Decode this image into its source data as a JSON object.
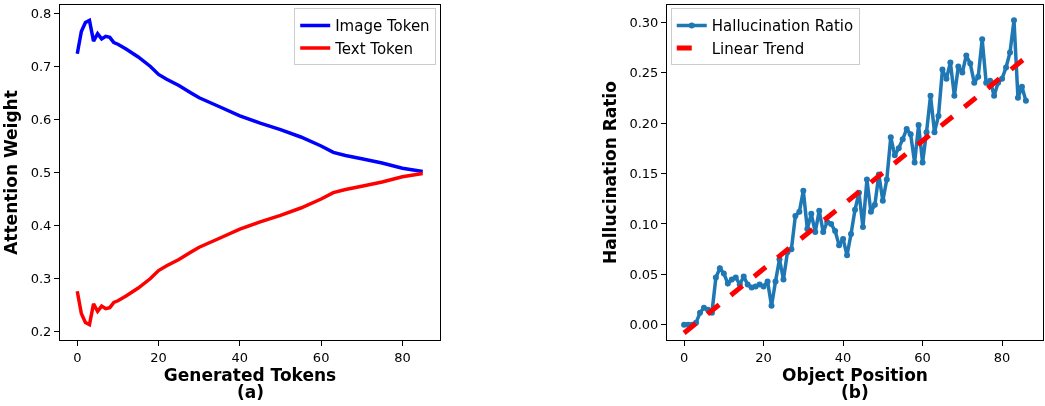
{
  "chart_data": [
    {
      "type": "line",
      "xlabel": "Generated Tokens",
      "ylabel": "Attention Weight",
      "annotations": [
        "(a)"
      ],
      "x": [
        0,
        1,
        2,
        3,
        4,
        5,
        6,
        7,
        8,
        9,
        10,
        12,
        15,
        18,
        20,
        22,
        25,
        28,
        30,
        35,
        40,
        45,
        50,
        55,
        60,
        63,
        66,
        70,
        75,
        80,
        85
      ],
      "series": [
        {
          "name": "Image Token",
          "color": "#0000ff",
          "values": [
            0.724,
            0.766,
            0.783,
            0.787,
            0.748,
            0.762,
            0.752,
            0.757,
            0.755,
            0.745,
            0.742,
            0.733,
            0.718,
            0.7,
            0.685,
            0.676,
            0.664,
            0.65,
            0.641,
            0.624,
            0.607,
            0.593,
            0.581,
            0.567,
            0.55,
            0.538,
            0.532,
            0.526,
            0.518,
            0.508,
            0.502
          ]
        },
        {
          "name": "Text Token",
          "color": "#ff0000",
          "values": [
            0.276,
            0.234,
            0.217,
            0.213,
            0.252,
            0.238,
            0.248,
            0.243,
            0.245,
            0.255,
            0.258,
            0.267,
            0.282,
            0.3,
            0.315,
            0.324,
            0.336,
            0.35,
            0.359,
            0.376,
            0.393,
            0.407,
            0.419,
            0.433,
            0.45,
            0.462,
            0.468,
            0.474,
            0.482,
            0.492,
            0.498
          ]
        }
      ],
      "xlim": [
        -4.25,
        89.25
      ],
      "ylim": [
        0.184,
        0.816
      ],
      "xticks": [
        0,
        20,
        40,
        60,
        80
      ],
      "yticks": [
        0.2,
        0.3,
        0.4,
        0.5,
        0.6,
        0.7,
        0.8
      ],
      "legend": "top right",
      "marker": "none",
      "line_style": "solid"
    },
    {
      "type": "line",
      "xlabel": "Object Position",
      "ylabel": "Hallucination Ratio",
      "annotations": [
        "(b)"
      ],
      "series": [
        {
          "name": "Hallucination Ratio",
          "color": "#1f77b4",
          "marker": "circle",
          "line_style": "solid",
          "x": [
            0,
            1,
            2,
            3,
            4,
            5,
            6,
            7,
            8,
            9,
            10,
            11,
            12,
            13,
            14,
            15,
            16,
            17,
            18,
            19,
            20,
            21,
            22,
            23,
            24,
            25,
            26,
            27,
            28,
            29,
            30,
            31,
            32,
            33,
            34,
            35,
            36,
            37,
            38,
            39,
            40,
            41,
            42,
            43,
            44,
            45,
            46,
            47,
            48,
            49,
            50,
            51,
            52,
            53,
            54,
            55,
            56,
            57,
            58,
            59,
            60,
            61,
            62,
            63,
            64,
            65,
            66,
            67,
            68,
            69,
            70,
            71,
            72,
            73,
            74,
            75,
            76,
            77,
            78,
            79,
            80,
            81,
            82,
            83,
            84,
            85,
            86
          ],
          "values": [
            0,
            0,
            0,
            0.002,
            0.012,
            0.017,
            0.015,
            0.012,
            0.047,
            0.056,
            0.051,
            0.041,
            0.045,
            0.047,
            0.04,
            0.048,
            0.04,
            0.037,
            0.038,
            0.04,
            0.038,
            0.043,
            0.019,
            0.043,
            0.065,
            0.045,
            0.072,
            0.075,
            0.108,
            0.112,
            0.133,
            0.095,
            0.11,
            0.092,
            0.113,
            0.092,
            0.102,
            0.1,
            0.093,
            0.079,
            0.085,
            0.069,
            0.09,
            0.114,
            0.131,
            0.097,
            0.144,
            0.112,
            0.119,
            0.149,
            0.123,
            0.144,
            0.186,
            0.168,
            0.175,
            0.184,
            0.194,
            0.189,
            0.161,
            0.198,
            0.161,
            0.191,
            0.227,
            0.191,
            0.207,
            0.253,
            0.244,
            0.26,
            0.227,
            0.256,
            0.25,
            0.267,
            0.259,
            0.24,
            0.246,
            0.283,
            0.24,
            0.242,
            0.227,
            0.24,
            0.244,
            0.255,
            0.27,
            0.302,
            0.225,
            0.236,
            0.222
          ]
        },
        {
          "name": "Linear Trend",
          "color": "#ff0000",
          "marker": "none",
          "line_style": "dashed",
          "x": [
            0,
            86
          ],
          "values": [
            -0.008,
            0.265
          ]
        }
      ],
      "xlim": [
        -4.3,
        90.3
      ],
      "ylim": [
        -0.015,
        0.317
      ],
      "xticks": [
        0,
        20,
        40,
        60,
        80
      ],
      "yticks": [
        {
          "value": 0,
          "label": "0.00"
        },
        {
          "value": 0.05,
          "label": "0.05"
        },
        {
          "value": 0.1,
          "label": "0.10"
        },
        {
          "value": 0.15,
          "label": "0.15"
        },
        {
          "value": 0.2,
          "label": "0.20"
        },
        {
          "value": 0.25,
          "label": "0.25"
        },
        {
          "value": 0.3,
          "label": "0.30"
        }
      ],
      "legend": "top left"
    }
  ]
}
